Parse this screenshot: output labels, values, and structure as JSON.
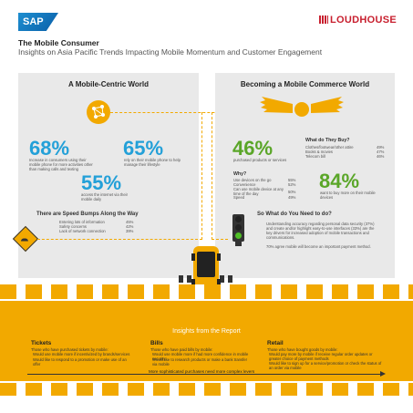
{
  "header": {
    "sap_logo": "SAP",
    "loudhouse_logo": "LOUDHOUSE",
    "title": "The Mobile Consumer",
    "subtitle": "Insights on Asia Pacific Trends Impacting Mobile Momentum and Customer Engagement"
  },
  "left_panel": {
    "heading": "A Mobile-Centric World",
    "stat1": {
      "value": "68%",
      "text": "Increase in consumers using their mobile phone for more activities other than making calls and texting"
    },
    "stat2": {
      "value": "65%",
      "text": "rely on their mobile phone to help manage their lifestyle"
    },
    "stat3": {
      "value": "55%",
      "text": "access the internet via their mobile daily"
    },
    "bumps_heading": "There are Speed Bumps Along the Way",
    "bumps": [
      {
        "label": "Entering lots of information",
        "value": "45%"
      },
      {
        "label": "Safety concerns",
        "value": "42%"
      },
      {
        "label": "Lack of network connection",
        "value": "39%"
      }
    ]
  },
  "right_panel": {
    "heading": "Becoming a Mobile Commerce World",
    "stat1": {
      "value": "46%",
      "text": "purchased products or services"
    },
    "buy_heading": "What do They Buy?",
    "buy_items": [
      {
        "label": "Clothes/footwear/other attire",
        "value": "49%"
      },
      {
        "label": "Books & movies",
        "value": "47%"
      },
      {
        "label": "Telecom bill",
        "value": "46%"
      }
    ],
    "why_heading": "Why?",
    "why_items": [
      {
        "label": "Use devices on the go",
        "value": "55%"
      },
      {
        "label": "Convenience",
        "value": "52%"
      },
      {
        "label": "Can use mobile device at any time of the day",
        "value": "50%"
      },
      {
        "label": "Speed",
        "value": "49%"
      }
    ],
    "stat2": {
      "value": "84%",
      "text": "want to buy more on their mobile devices"
    },
    "need_heading": "So What do You Need to do?",
    "need_text1": "Understanding accuracy regarding personal data security (37%) and create and/or highlight easy-to-use interfaces (33%) are the key drivers for increased adoption of mobile transactions and communications.",
    "need_text2": "70% agree mobile will become an important payment method."
  },
  "insights": {
    "title": "Insights from the Report",
    "tickets": {
      "heading": "Tickets",
      "items": [
        "Those who have purchased tickets by mobile:",
        "Would use mobile more if incentivized by brands/services",
        "Would like to respond to a promotion or make use of an offer"
      ]
    },
    "bills": {
      "heading": "Bills",
      "items": [
        "Those who have paid bills by mobile:",
        "Would use mobile more if had more confidence in mobile security",
        "Would like to research products or make a bank transfer via mobile"
      ]
    },
    "retail": {
      "heading": "Retail",
      "items": [
        "Those who have bought goods by mobile:",
        "Would pay more by mobile if receive regular order updates or greater choice of payment methods",
        "Would like to sign up for a service/promotion or check the status of an order via mobile"
      ]
    },
    "arrow_text": "More sophisticated purchases need more complex levers"
  },
  "colors": {
    "accent": "#f2a900",
    "blue": "#23a0d8",
    "green": "#5aa628"
  }
}
